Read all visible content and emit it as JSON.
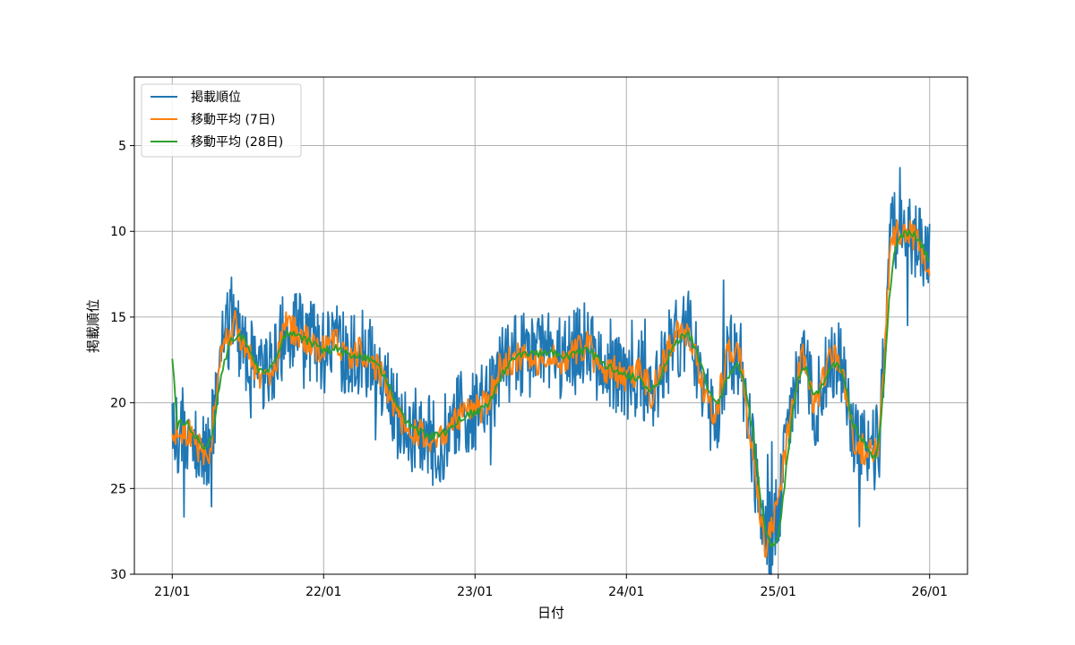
{
  "chart_data": {
    "type": "line",
    "title": "",
    "xlabel": "日付",
    "ylabel": "掲載順位",
    "x_range": [
      "2021-01-01",
      "2026-01-01"
    ],
    "ylim": [
      30,
      1
    ],
    "y_inverted": true,
    "grid": true,
    "legend_position": "top-left",
    "x_ticks": [
      {
        "date": "2021-01-01",
        "label": "21/01"
      },
      {
        "date": "2022-01-01",
        "label": "22/01"
      },
      {
        "date": "2023-01-01",
        "label": "23/01"
      },
      {
        "date": "2024-01-01",
        "label": "24/01"
      },
      {
        "date": "2025-01-01",
        "label": "25/01"
      },
      {
        "date": "2026-01-01",
        "label": "26/01"
      }
    ],
    "y_ticks": [
      5,
      10,
      15,
      20,
      25,
      30
    ],
    "series": [
      {
        "name": "掲載順位",
        "color": "#1f77b4",
        "noise_amplitude": 2.5,
        "points": [
          [
            "2021-01-01",
            22.0
          ],
          [
            "2021-02-01",
            21.5
          ],
          [
            "2021-03-01",
            22.5
          ],
          [
            "2021-04-01",
            23.0
          ],
          [
            "2021-05-01",
            16.5
          ],
          [
            "2021-06-01",
            15.5
          ],
          [
            "2021-07-01",
            17.0
          ],
          [
            "2021-08-01",
            18.5
          ],
          [
            "2021-09-01",
            18.0
          ],
          [
            "2021-10-01",
            15.5
          ],
          [
            "2021-11-01",
            16.0
          ],
          [
            "2021-12-01",
            16.5
          ],
          [
            "2022-01-01",
            17.0
          ],
          [
            "2022-02-01",
            16.5
          ],
          [
            "2022-03-01",
            17.5
          ],
          [
            "2022-04-01",
            17.0
          ],
          [
            "2022-05-01",
            17.5
          ],
          [
            "2022-06-01",
            19.0
          ],
          [
            "2022-07-01",
            21.0
          ],
          [
            "2022-08-01",
            21.5
          ],
          [
            "2022-09-01",
            22.0
          ],
          [
            "2022-10-01",
            22.5
          ],
          [
            "2022-11-01",
            21.5
          ],
          [
            "2022-12-01",
            20.5
          ],
          [
            "2023-01-01",
            20.5
          ],
          [
            "2023-02-01",
            20.0
          ],
          [
            "2023-03-01",
            18.0
          ],
          [
            "2023-04-01",
            17.5
          ],
          [
            "2023-05-01",
            17.0
          ],
          [
            "2023-06-01",
            17.5
          ],
          [
            "2023-07-01",
            17.0
          ],
          [
            "2023-08-01",
            17.5
          ],
          [
            "2023-09-01",
            17.0
          ],
          [
            "2023-10-01",
            16.5
          ],
          [
            "2023-11-01",
            18.5
          ],
          [
            "2023-12-01",
            18.0
          ],
          [
            "2024-01-01",
            19.0
          ],
          [
            "2024-02-01",
            18.0
          ],
          [
            "2024-03-01",
            19.5
          ],
          [
            "2024-04-01",
            17.5
          ],
          [
            "2024-05-01",
            16.0
          ],
          [
            "2024-06-01",
            16.0
          ],
          [
            "2024-07-01",
            19.0
          ],
          [
            "2024-08-01",
            21.0
          ],
          [
            "2024-09-01",
            17.0
          ],
          [
            "2024-10-01",
            17.5
          ],
          [
            "2024-11-01",
            23.0
          ],
          [
            "2024-12-01",
            28.5
          ],
          [
            "2025-01-01",
            26.0
          ],
          [
            "2025-02-01",
            20.5
          ],
          [
            "2025-03-01",
            17.0
          ],
          [
            "2025-04-01",
            20.5
          ],
          [
            "2025-05-01",
            17.5
          ],
          [
            "2025-06-01",
            17.5
          ],
          [
            "2025-07-01",
            22.0
          ],
          [
            "2025-08-01",
            23.0
          ],
          [
            "2025-09-01",
            22.5
          ],
          [
            "2025-10-01",
            10.0
          ],
          [
            "2025-11-01",
            10.0
          ],
          [
            "2025-12-01",
            10.5
          ],
          [
            "2026-01-01",
            12.0
          ]
        ]
      },
      {
        "name": "移動平均 (7日)",
        "color": "#ff7f0e",
        "noise_amplitude": 0.9,
        "points": [
          [
            "2021-01-01",
            22.0
          ],
          [
            "2021-02-01",
            21.5
          ],
          [
            "2021-03-01",
            22.5
          ],
          [
            "2021-04-01",
            23.0
          ],
          [
            "2021-05-01",
            16.5
          ],
          [
            "2021-06-01",
            15.5
          ],
          [
            "2021-07-01",
            17.0
          ],
          [
            "2021-08-01",
            18.5
          ],
          [
            "2021-09-01",
            18.0
          ],
          [
            "2021-10-01",
            15.5
          ],
          [
            "2021-11-01",
            16.0
          ],
          [
            "2021-12-01",
            16.5
          ],
          [
            "2022-01-01",
            17.0
          ],
          [
            "2022-02-01",
            16.5
          ],
          [
            "2022-03-01",
            17.5
          ],
          [
            "2022-04-01",
            17.0
          ],
          [
            "2022-05-01",
            17.5
          ],
          [
            "2022-06-01",
            19.0
          ],
          [
            "2022-07-01",
            21.0
          ],
          [
            "2022-08-01",
            21.5
          ],
          [
            "2022-09-01",
            22.0
          ],
          [
            "2022-10-01",
            22.5
          ],
          [
            "2022-11-01",
            21.5
          ],
          [
            "2022-12-01",
            20.5
          ],
          [
            "2023-01-01",
            20.5
          ],
          [
            "2023-02-01",
            20.0
          ],
          [
            "2023-03-01",
            18.0
          ],
          [
            "2023-04-01",
            17.5
          ],
          [
            "2023-05-01",
            17.0
          ],
          [
            "2023-06-01",
            17.5
          ],
          [
            "2023-07-01",
            17.0
          ],
          [
            "2023-08-01",
            17.5
          ],
          [
            "2023-09-01",
            17.0
          ],
          [
            "2023-10-01",
            16.5
          ],
          [
            "2023-11-01",
            18.5
          ],
          [
            "2023-12-01",
            18.0
          ],
          [
            "2024-01-01",
            19.0
          ],
          [
            "2024-02-01",
            18.0
          ],
          [
            "2024-03-01",
            19.5
          ],
          [
            "2024-04-01",
            17.5
          ],
          [
            "2024-05-01",
            16.0
          ],
          [
            "2024-06-01",
            16.0
          ],
          [
            "2024-07-01",
            19.0
          ],
          [
            "2024-08-01",
            21.0
          ],
          [
            "2024-09-01",
            17.0
          ],
          [
            "2024-10-01",
            17.5
          ],
          [
            "2024-11-01",
            23.0
          ],
          [
            "2024-12-01",
            28.5
          ],
          [
            "2025-01-01",
            26.0
          ],
          [
            "2025-02-01",
            20.5
          ],
          [
            "2025-03-01",
            17.0
          ],
          [
            "2025-04-01",
            20.5
          ],
          [
            "2025-05-01",
            17.5
          ],
          [
            "2025-06-01",
            17.5
          ],
          [
            "2025-07-01",
            22.0
          ],
          [
            "2025-08-01",
            23.0
          ],
          [
            "2025-09-01",
            22.5
          ],
          [
            "2025-10-01",
            10.0
          ],
          [
            "2025-11-01",
            10.0
          ],
          [
            "2025-12-01",
            10.5
          ],
          [
            "2026-01-01",
            12.0
          ]
        ]
      },
      {
        "name": "移動平均 (28日)",
        "color": "#2ca02c",
        "noise_amplitude": 0.25,
        "points": [
          [
            "2021-01-01",
            21.5
          ],
          [
            "2021-02-01",
            21.0
          ],
          [
            "2021-03-01",
            22.0
          ],
          [
            "2021-04-01",
            23.0
          ],
          [
            "2021-05-01",
            18.0
          ],
          [
            "2021-06-01",
            15.8
          ],
          [
            "2021-07-01",
            16.5
          ],
          [
            "2021-08-01",
            18.5
          ],
          [
            "2021-09-01",
            17.8
          ],
          [
            "2021-10-01",
            15.8
          ],
          [
            "2021-11-01",
            16.0
          ],
          [
            "2021-12-01",
            16.5
          ],
          [
            "2022-01-01",
            17.0
          ],
          [
            "2022-02-01",
            16.8
          ],
          [
            "2022-03-01",
            17.2
          ],
          [
            "2022-04-01",
            17.3
          ],
          [
            "2022-05-01",
            17.5
          ],
          [
            "2022-06-01",
            18.5
          ],
          [
            "2022-07-01",
            20.5
          ],
          [
            "2022-08-01",
            21.5
          ],
          [
            "2022-09-01",
            21.8
          ],
          [
            "2022-10-01",
            22.0
          ],
          [
            "2022-11-01",
            21.5
          ],
          [
            "2022-12-01",
            20.8
          ],
          [
            "2023-01-01",
            20.5
          ],
          [
            "2023-02-01",
            20.2
          ],
          [
            "2023-03-01",
            18.5
          ],
          [
            "2023-04-01",
            17.5
          ],
          [
            "2023-05-01",
            17.2
          ],
          [
            "2023-06-01",
            17.2
          ],
          [
            "2023-07-01",
            17.0
          ],
          [
            "2023-08-01",
            17.3
          ],
          [
            "2023-09-01",
            17.2
          ],
          [
            "2023-10-01",
            16.8
          ],
          [
            "2023-11-01",
            17.8
          ],
          [
            "2023-12-01",
            18.0
          ],
          [
            "2024-01-01",
            18.5
          ],
          [
            "2024-02-01",
            18.5
          ],
          [
            "2024-03-01",
            19.5
          ],
          [
            "2024-04-01",
            18.0
          ],
          [
            "2024-05-01",
            16.3
          ],
          [
            "2024-06-01",
            15.8
          ],
          [
            "2024-07-01",
            18.0
          ],
          [
            "2024-08-01",
            20.5
          ],
          [
            "2024-09-01",
            18.5
          ],
          [
            "2024-10-01",
            17.5
          ],
          [
            "2024-11-01",
            21.5
          ],
          [
            "2024-12-01",
            28.0
          ],
          [
            "2025-01-01",
            28.5
          ],
          [
            "2025-02-01",
            21.0
          ],
          [
            "2025-03-01",
            17.2
          ],
          [
            "2025-04-01",
            20.0
          ],
          [
            "2025-05-01",
            18.0
          ],
          [
            "2025-06-01",
            17.5
          ],
          [
            "2025-07-01",
            21.5
          ],
          [
            "2025-08-01",
            22.5
          ],
          [
            "2025-09-01",
            23.5
          ],
          [
            "2025-10-01",
            11.5
          ],
          [
            "2025-11-01",
            10.0
          ],
          [
            "2025-12-01",
            10.2
          ],
          [
            "2026-01-01",
            11.8
          ]
        ]
      }
    ]
  }
}
